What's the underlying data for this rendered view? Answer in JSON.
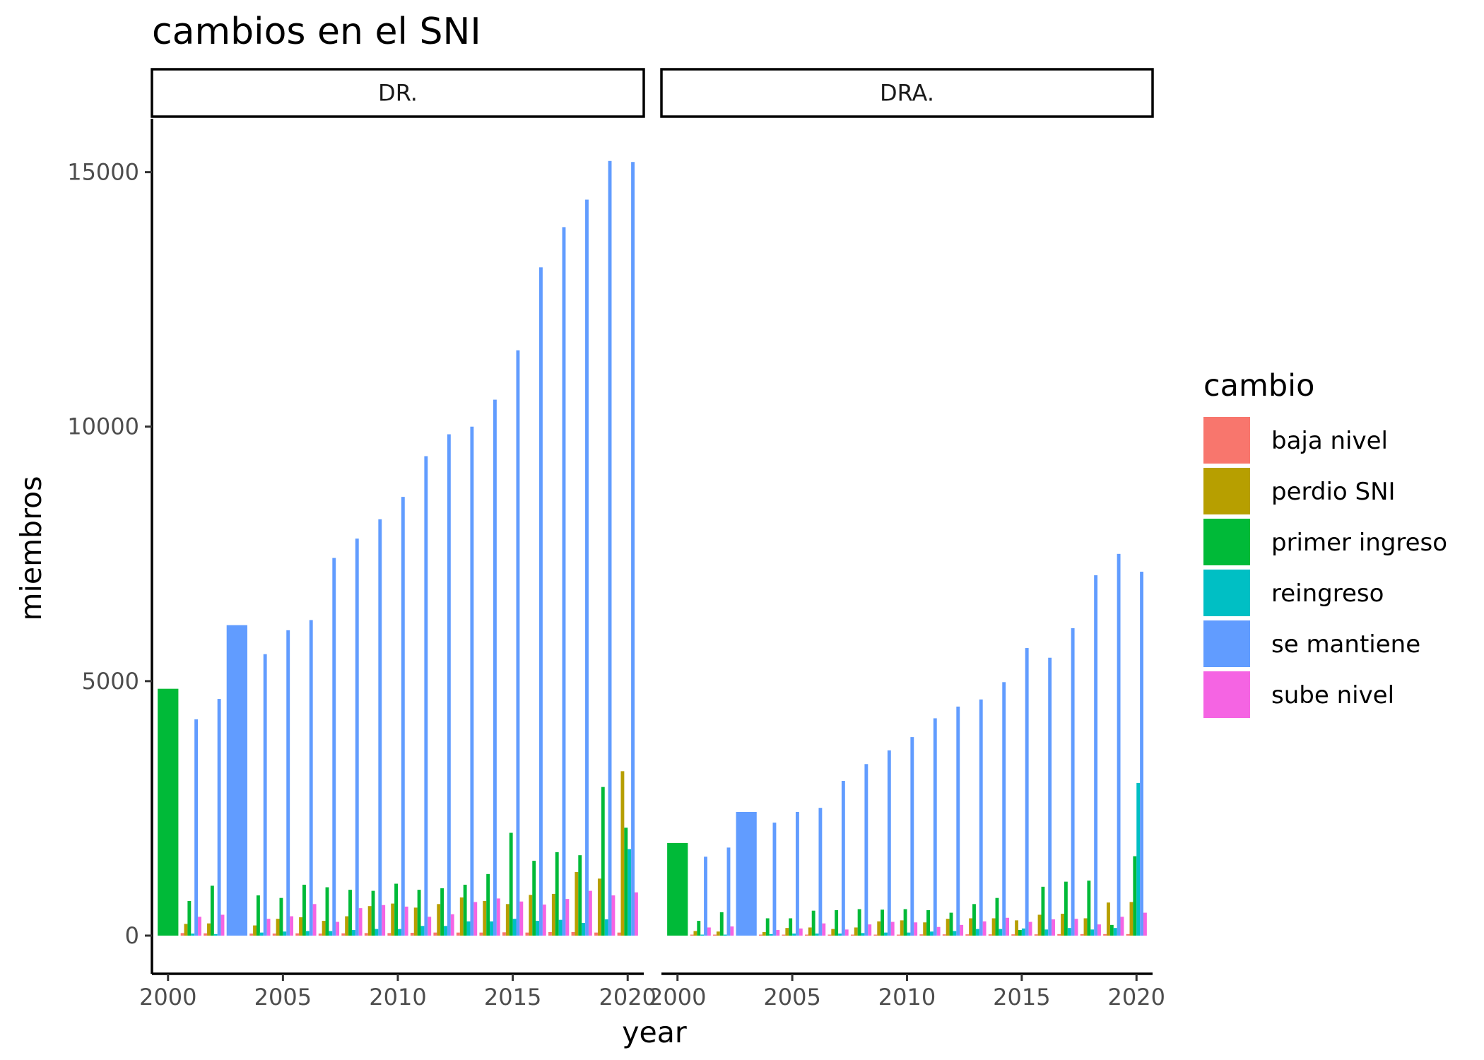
{
  "chart_data": {
    "type": "bar",
    "title": "cambios en el SNI",
    "xlabel": "year",
    "ylabel": "miembros",
    "xlim": [
      1999.3,
      2020.7
    ],
    "ylim": [
      -750,
      16050
    ],
    "x_ticks": [
      2000,
      2005,
      2010,
      2015,
      2020
    ],
    "y_ticks": [
      0,
      5000,
      10000,
      15000
    ],
    "legend_title": "cambio",
    "legend_position": "right",
    "grid": false,
    "panels": [
      "DR.",
      "DRA."
    ],
    "series": [
      {
        "name": "baja nivel",
        "color": "#F8766D"
      },
      {
        "name": "perdio SNI",
        "color": "#B79F00"
      },
      {
        "name": "primer ingreso",
        "color": "#00BA38"
      },
      {
        "name": "reingreso",
        "color": "#00BFC4"
      },
      {
        "name": "se mantiene",
        "color": "#619CFF"
      },
      {
        "name": "sube nivel",
        "color": "#F564E3"
      }
    ],
    "data": {
      "DR.": {
        "2000": {
          "primer ingreso": 4850
        },
        "2001": {
          "baja nivel": 50,
          "perdio SNI": 230,
          "primer ingreso": 680,
          "reingreso": 40,
          "se mantiene": 4250,
          "sube nivel": 370
        },
        "2002": {
          "baja nivel": 45,
          "perdio SNI": 240,
          "primer ingreso": 980,
          "reingreso": 30,
          "se mantiene": 4650,
          "sube nivel": 410
        },
        "2003": {
          "se mantiene": 6100
        },
        "2004": {
          "baja nivel": 40,
          "perdio SNI": 200,
          "primer ingreso": 790,
          "reingreso": 60,
          "se mantiene": 5530,
          "sube nivel": 330
        },
        "2005": {
          "baja nivel": 40,
          "perdio SNI": 330,
          "primer ingreso": 740,
          "reingreso": 80,
          "se mantiene": 6000,
          "sube nivel": 380
        },
        "2006": {
          "baja nivel": 45,
          "perdio SNI": 360,
          "primer ingreso": 1000,
          "reingreso": 90,
          "se mantiene": 6200,
          "sube nivel": 620
        },
        "2007": {
          "baja nivel": 40,
          "perdio SNI": 290,
          "primer ingreso": 950,
          "reingreso": 90,
          "se mantiene": 7420,
          "sube nivel": 270
        },
        "2008": {
          "baja nivel": 45,
          "perdio SNI": 380,
          "primer ingreso": 900,
          "reingreso": 110,
          "se mantiene": 7800,
          "sube nivel": 540
        },
        "2009": {
          "baja nivel": 50,
          "perdio SNI": 580,
          "primer ingreso": 880,
          "reingreso": 130,
          "se mantiene": 8180,
          "sube nivel": 600
        },
        "2010": {
          "baja nivel": 50,
          "perdio SNI": 630,
          "primer ingreso": 1020,
          "reingreso": 130,
          "se mantiene": 8620,
          "sube nivel": 570
        },
        "2011": {
          "baja nivel": 55,
          "perdio SNI": 550,
          "primer ingreso": 900,
          "reingreso": 190,
          "se mantiene": 9420,
          "sube nivel": 370
        },
        "2012": {
          "baja nivel": 60,
          "perdio SNI": 620,
          "primer ingreso": 930,
          "reingreso": 190,
          "se mantiene": 9850,
          "sube nivel": 420
        },
        "2013": {
          "baja nivel": 60,
          "perdio SNI": 750,
          "primer ingreso": 1000,
          "reingreso": 280,
          "se mantiene": 10000,
          "sube nivel": 660
        },
        "2014": {
          "baja nivel": 60,
          "perdio SNI": 680,
          "primer ingreso": 1210,
          "reingreso": 280,
          "se mantiene": 10530,
          "sube nivel": 730
        },
        "2015": {
          "baja nivel": 65,
          "perdio SNI": 620,
          "primer ingreso": 2020,
          "reingreso": 330,
          "se mantiene": 11500,
          "sube nivel": 670
        },
        "2016": {
          "baja nivel": 60,
          "perdio SNI": 800,
          "primer ingreso": 1470,
          "reingreso": 290,
          "se mantiene": 13130,
          "sube nivel": 610
        },
        "2017": {
          "baja nivel": 70,
          "perdio SNI": 820,
          "primer ingreso": 1640,
          "reingreso": 310,
          "se mantiene": 13920,
          "sube nivel": 720
        },
        "2018": {
          "baja nivel": 70,
          "perdio SNI": 1250,
          "primer ingreso": 1580,
          "reingreso": 250,
          "se mantiene": 14460,
          "sube nivel": 880
        },
        "2019": {
          "baja nivel": 60,
          "perdio SNI": 1120,
          "primer ingreso": 2920,
          "reingreso": 320,
          "se mantiene": 15220,
          "sube nivel": 790
        },
        "2020": {
          "baja nivel": 60,
          "perdio SNI": 3230,
          "primer ingreso": 2120,
          "reingreso": 1700,
          "se mantiene": 15200,
          "sube nivel": 850
        }
      },
      "DRA.": {
        "2000": {
          "primer ingreso": 1820
        },
        "2001": {
          "baja nivel": 20,
          "perdio SNI": 90,
          "primer ingreso": 290,
          "reingreso": 20,
          "se mantiene": 1550,
          "sube nivel": 160
        },
        "2002": {
          "baja nivel": 20,
          "perdio SNI": 80,
          "primer ingreso": 460,
          "reingreso": 20,
          "se mantiene": 1730,
          "sube nivel": 180
        },
        "2003": {
          "se mantiene": 2430
        },
        "2004": {
          "baja nivel": 20,
          "perdio SNI": 70,
          "primer ingreso": 340,
          "reingreso": 30,
          "se mantiene": 2220,
          "sube nivel": 110
        },
        "2005": {
          "baja nivel": 20,
          "perdio SNI": 150,
          "primer ingreso": 340,
          "reingreso": 40,
          "se mantiene": 2430,
          "sube nivel": 140
        },
        "2006": {
          "baja nivel": 20,
          "perdio SNI": 160,
          "primer ingreso": 490,
          "reingreso": 40,
          "se mantiene": 2510,
          "sube nivel": 240
        },
        "2007": {
          "baja nivel": 20,
          "perdio SNI": 130,
          "primer ingreso": 500,
          "reingreso": 40,
          "se mantiene": 3040,
          "sube nivel": 120
        },
        "2008": {
          "baja nivel": 20,
          "perdio SNI": 160,
          "primer ingreso": 520,
          "reingreso": 50,
          "se mantiene": 3370,
          "sube nivel": 220
        },
        "2009": {
          "baja nivel": 20,
          "perdio SNI": 280,
          "primer ingreso": 510,
          "reingreso": 60,
          "se mantiene": 3640,
          "sube nivel": 270
        },
        "2010": {
          "baja nivel": 20,
          "perdio SNI": 300,
          "primer ingreso": 520,
          "reingreso": 60,
          "se mantiene": 3900,
          "sube nivel": 260
        },
        "2011": {
          "baja nivel": 25,
          "perdio SNI": 260,
          "primer ingreso": 500,
          "reingreso": 80,
          "se mantiene": 4270,
          "sube nivel": 170
        },
        "2012": {
          "baja nivel": 25,
          "perdio SNI": 330,
          "primer ingreso": 450,
          "reingreso": 90,
          "se mantiene": 4500,
          "sube nivel": 210
        },
        "2013": {
          "baja nivel": 25,
          "perdio SNI": 340,
          "primer ingreso": 620,
          "reingreso": 130,
          "se mantiene": 4640,
          "sube nivel": 280
        },
        "2014": {
          "baja nivel": 25,
          "perdio SNI": 340,
          "primer ingreso": 740,
          "reingreso": 130,
          "se mantiene": 4980,
          "sube nivel": 350
        },
        "2015": {
          "baja nivel": 25,
          "perdio SNI": 300,
          "primer ingreso": 110,
          "reingreso": 140,
          "se mantiene": 5650,
          "sube nivel": 270
        },
        "2016": {
          "baja nivel": 25,
          "perdio SNI": 410,
          "primer ingreso": 960,
          "reingreso": 120,
          "se mantiene": 5460,
          "sube nivel": 320
        },
        "2017": {
          "baja nivel": 30,
          "perdio SNI": 430,
          "primer ingreso": 1060,
          "reingreso": 150,
          "se mantiene": 6040,
          "sube nivel": 330
        },
        "2018": {
          "baja nivel": 30,
          "perdio SNI": 340,
          "primer ingreso": 1080,
          "reingreso": 120,
          "se mantiene": 7080,
          "sube nivel": 220
        },
        "2019": {
          "baja nivel": 30,
          "perdio SNI": 650,
          "primer ingreso": 210,
          "reingreso": 150,
          "se mantiene": 7500,
          "sube nivel": 370
        },
        "2020": {
          "baja nivel": 30,
          "perdio SNI": 660,
          "primer ingreso": 1560,
          "reingreso": 3000,
          "se mantiene": 7150,
          "sube nivel": 450
        }
      }
    }
  }
}
